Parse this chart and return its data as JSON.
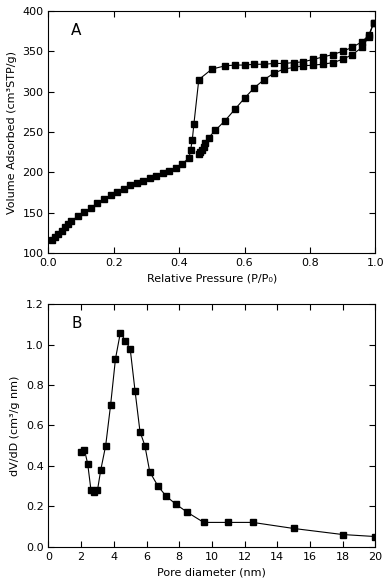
{
  "panel_A": {
    "label": "A",
    "xlabel": "Relative Pressure (P/P₀)",
    "ylabel": "Volume Adsorbed (cm³STP/g)",
    "xlim": [
      0.0,
      1.0
    ],
    "ylim": [
      100,
      400
    ],
    "yticks": [
      100,
      150,
      200,
      250,
      300,
      350,
      400
    ],
    "xticks": [
      0.0,
      0.2,
      0.4,
      0.6,
      0.8,
      1.0
    ],
    "adsorption": {
      "x": [
        0.01,
        0.02,
        0.03,
        0.04,
        0.05,
        0.06,
        0.07,
        0.09,
        0.11,
        0.13,
        0.15,
        0.17,
        0.19,
        0.21,
        0.23,
        0.25,
        0.27,
        0.29,
        0.31,
        0.33,
        0.35,
        0.37,
        0.39,
        0.41,
        0.43,
        0.435,
        0.44,
        0.445,
        0.46,
        0.5,
        0.54,
        0.57,
        0.6,
        0.63,
        0.66,
        0.69,
        0.72,
        0.75,
        0.78,
        0.81,
        0.84,
        0.87,
        0.9,
        0.93,
        0.96,
        0.98,
        0.995
      ],
      "y": [
        117,
        120,
        124,
        128,
        132,
        136,
        140,
        146,
        151,
        156,
        162,
        167,
        172,
        176,
        180,
        184,
        187,
        190,
        193,
        196,
        199,
        202,
        206,
        211,
        218,
        228,
        240,
        260,
        315,
        328,
        332,
        333,
        333,
        334,
        334,
        335,
        335,
        336,
        337,
        340,
        343,
        346,
        350,
        355,
        362,
        370,
        385
      ]
    },
    "desorption": {
      "x": [
        0.995,
        0.98,
        0.96,
        0.93,
        0.9,
        0.87,
        0.84,
        0.81,
        0.78,
        0.75,
        0.72,
        0.69,
        0.66,
        0.63,
        0.6,
        0.57,
        0.54,
        0.51,
        0.49,
        0.48,
        0.475,
        0.47,
        0.465,
        0.46
      ],
      "y": [
        385,
        368,
        355,
        346,
        340,
        336,
        334,
        333,
        332,
        330,
        328,
        323,
        315,
        305,
        292,
        278,
        264,
        252,
        243,
        237,
        232,
        228,
        225,
        223
      ]
    }
  },
  "panel_B": {
    "label": "B",
    "xlabel": "Pore diameter (nm)",
    "ylabel": "dV/dD (cm³/g nm)",
    "xlim": [
      0,
      20
    ],
    "ylim": [
      0.0,
      1.2
    ],
    "yticks": [
      0.0,
      0.2,
      0.4,
      0.6,
      0.8,
      1.0,
      1.2
    ],
    "xticks": [
      0,
      2,
      4,
      6,
      8,
      10,
      12,
      14,
      16,
      18,
      20
    ],
    "x": [
      2.0,
      2.2,
      2.4,
      2.6,
      2.8,
      3.0,
      3.2,
      3.5,
      3.8,
      4.1,
      4.4,
      4.7,
      5.0,
      5.3,
      5.6,
      5.9,
      6.2,
      6.7,
      7.2,
      7.8,
      8.5,
      9.5,
      11.0,
      12.5,
      15.0,
      18.0,
      20.0
    ],
    "y": [
      0.47,
      0.48,
      0.41,
      0.28,
      0.27,
      0.28,
      0.38,
      0.5,
      0.7,
      0.93,
      1.06,
      1.02,
      0.98,
      0.77,
      0.57,
      0.5,
      0.37,
      0.3,
      0.25,
      0.21,
      0.17,
      0.12,
      0.12,
      0.12,
      0.09,
      0.06,
      0.05
    ]
  },
  "marker": "s",
  "markersize": 4,
  "line_color": "black",
  "bg_color": "white",
  "linewidth": 0.8,
  "title_fontsize": 11,
  "label_fontsize": 8,
  "tick_fontsize": 8
}
